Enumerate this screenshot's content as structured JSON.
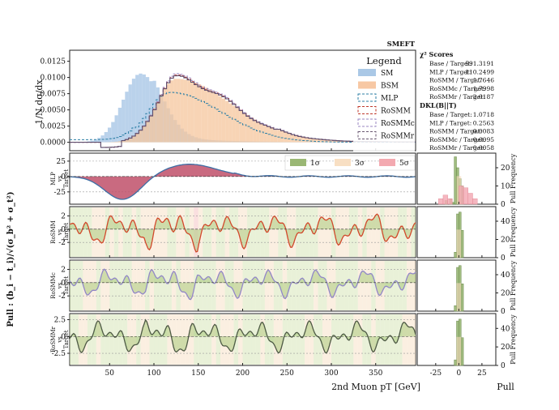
{
  "chart_data": {
    "type": "histogram-with-pull-panels",
    "corner_label": "SMEFT",
    "legend": {
      "title": "Legend",
      "entries": [
        {
          "label": "SM",
          "color": "#aac8e6",
          "style": "fill"
        },
        {
          "label": "BSM",
          "color": "#f7c8a4",
          "style": "fill"
        },
        {
          "label": "MLP",
          "color": "#2d7fa6",
          "style": "dashed"
        },
        {
          "label": "RoSMM",
          "color": "#c0392b",
          "style": "dashed"
        },
        {
          "label": "RoSMM_c",
          "color": "#9a86c2",
          "style": "dashed"
        },
        {
          "label": "RoSMM_r",
          "color": "#6b5a73",
          "style": "dashed"
        }
      ]
    },
    "scores": {
      "chi2_title": "χ² Scores",
      "chi2": [
        {
          "label": "Base / Target:",
          "value": "591.3191"
        },
        {
          "label": "MLP / Target:",
          "value": "110.2499"
        },
        {
          "label": "RoSMM / Target:",
          "value": "1.7646"
        },
        {
          "label": "RoSMM_c / Target:",
          "value": "1.7998"
        },
        {
          "label": "RoSMM_r / Target:",
          "value": "2.0187"
        }
      ],
      "d_title": "D_KL(B||T)",
      "d": [
        {
          "label": "Base / Target:",
          "value": "1.0718"
        },
        {
          "label": "MLP / Target:",
          "value": "0.2563"
        },
        {
          "label": "RoSMM / Target:",
          "value": "0.0083"
        },
        {
          "label": "RoSMM_c / Target:",
          "value": "0.0095"
        },
        {
          "label": "RoSMM_r / Target:",
          "value": "0.0058"
        }
      ]
    },
    "top": {
      "ylabel": "1/N dσ/dx",
      "yticks": [
        "0.0000",
        "0.0025",
        "0.0050",
        "0.0075",
        "0.0100",
        "0.0125"
      ],
      "ylim": [
        -0.0013,
        0.0142
      ]
    },
    "xaxis": {
      "xlabel": "2nd Muon p_T [GeV]",
      "xlim": [
        5,
        395
      ],
      "ticks": [
        50,
        100,
        150,
        200,
        250,
        300,
        350
      ]
    },
    "sigma_legend": [
      "1σ",
      "3σ",
      "5σ"
    ],
    "pull_ylabel": "Pull : (b_i − t_i)/√(σ_b² + σ_t²)",
    "panels": [
      {
        "label": "MLP vs Target",
        "yticks": [
          -25,
          0,
          25
        ],
        "ylim": [
          -45,
          38
        ],
        "color": "#3c6ea5",
        "fill": "#c0506a"
      },
      {
        "label": "RoSMM vs Target",
        "yticks": [
          -2,
          0,
          2
        ],
        "ylim": [
          -4.3,
          3.4
        ],
        "color": "#d2482b"
      },
      {
        "label": "RoSMM_c vs Target",
        "yticks": [
          -2,
          0,
          2
        ],
        "ylim": [
          -4.3,
          3.4
        ],
        "color": "#9187c7"
      },
      {
        "label": "RoSMM_r vs Target",
        "yticks": [
          -2.5,
          0.0,
          2.5
        ],
        "ylim": [
          -4.3,
          3.4
        ],
        "color": "#4e5a45"
      }
    ],
    "pull_hist": {
      "xlabel": "Pull",
      "xticks": [
        -25,
        0,
        25
      ],
      "ylabel": "Pull Frequency",
      "panel_yticks": [
        [
          0,
          10,
          20
        ],
        [
          0,
          20,
          40
        ],
        [
          0,
          20,
          40
        ],
        [
          0,
          20,
          40
        ]
      ]
    }
  }
}
